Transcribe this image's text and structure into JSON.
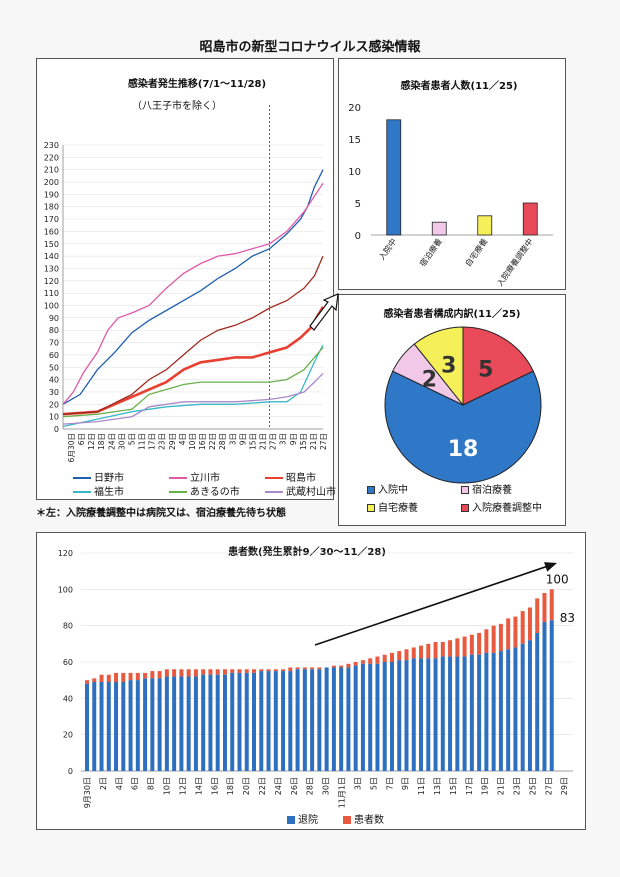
{
  "page_title": "昭島市の新型コロナウイルス感染情報",
  "note": "＊左：入院療養調整中は病院又は、宿泊療養先待ち状態",
  "colors": {
    "hino": "#1f5fb0",
    "tachikawa": "#e05aa8",
    "akishima": "#e84030",
    "fussa": "#3ab8c8",
    "akiruno": "#6ab04a",
    "musashimurayama": "#a88ac8",
    "hospital": "#2f78c8",
    "hotel": "#f2c8e8",
    "home": "#f5f05a",
    "adjusting": "#e84a5a",
    "discharged": "#2f6fc0",
    "patients": "#e85a40"
  },
  "chart_data": [
    {
      "type": "line",
      "title": "感染者発生推移(7/1〜11/28)",
      "subtitle": "（八王子市を除く）",
      "ylim": [
        0,
        230
      ],
      "yticks": [
        "0",
        "10",
        "20",
        "30",
        "40",
        "50",
        "60",
        "70",
        "80",
        "90",
        "100",
        "110",
        "120",
        "130",
        "140",
        "150",
        "160",
        "170",
        "180",
        "190",
        "200",
        "210",
        "220",
        "230"
      ],
      "xticks": [
        "6月30日",
        "6日",
        "12日",
        "18日",
        "24日",
        "30日",
        "5日",
        "11日",
        "17日",
        "23日",
        "29日",
        "4日",
        "10日",
        "16日",
        "22日",
        "28日",
        "3日",
        "9日",
        "15日",
        "21日",
        "27日",
        "3日",
        "9日",
        "15日",
        "21日",
        "27日"
      ],
      "x_range_days": 151,
      "marker_day": 120,
      "series": [
        {
          "name": "日野市",
          "key": "hino",
          "points": [
            [
              0,
              20
            ],
            [
              10,
              28
            ],
            [
              20,
              48
            ],
            [
              30,
              62
            ],
            [
              40,
              78
            ],
            [
              50,
              88
            ],
            [
              60,
              96
            ],
            [
              70,
              104
            ],
            [
              80,
              112
            ],
            [
              90,
              122
            ],
            [
              100,
              130
            ],
            [
              110,
              140
            ],
            [
              120,
              146
            ],
            [
              130,
              158
            ],
            [
              138,
              170
            ],
            [
              142,
              180
            ],
            [
              146,
              196
            ],
            [
              151,
              210
            ]
          ]
        },
        {
          "name": "立川市",
          "key": "tachikawa",
          "points": [
            [
              0,
              20
            ],
            [
              6,
              30
            ],
            [
              12,
              46
            ],
            [
              20,
              62
            ],
            [
              26,
              80
            ],
            [
              32,
              90
            ],
            [
              40,
              94
            ],
            [
              50,
              100
            ],
            [
              60,
              114
            ],
            [
              70,
              126
            ],
            [
              80,
              134
            ],
            [
              90,
              140
            ],
            [
              100,
              142
            ],
            [
              110,
              146
            ],
            [
              120,
              150
            ],
            [
              130,
              160
            ],
            [
              140,
              176
            ],
            [
              151,
              199
            ]
          ]
        },
        {
          "name": "昭島市",
          "key": "akishima",
          "points": [
            [
              0,
              12
            ],
            [
              20,
              14
            ],
            [
              40,
              26
            ],
            [
              50,
              32
            ],
            [
              60,
              38
            ],
            [
              70,
              48
            ],
            [
              80,
              54
            ],
            [
              90,
              56
            ],
            [
              100,
              58
            ],
            [
              110,
              58
            ],
            [
              120,
              62
            ],
            [
              130,
              66
            ],
            [
              138,
              74
            ],
            [
              144,
              82
            ],
            [
              148,
              92
            ],
            [
              151,
              99
            ]
          ]
        },
        {
          "name": "福生市",
          "key": "fussa",
          "points": [
            [
              0,
              2
            ],
            [
              20,
              8
            ],
            [
              40,
              14
            ],
            [
              60,
              18
            ],
            [
              80,
              20
            ],
            [
              100,
              20
            ],
            [
              120,
              22
            ],
            [
              130,
              22
            ],
            [
              138,
              30
            ],
            [
              144,
              48
            ],
            [
              148,
              60
            ],
            [
              151,
              68
            ]
          ]
        },
        {
          "name": "あきるの市",
          "key": "akiruno",
          "points": [
            [
              0,
              10
            ],
            [
              20,
              12
            ],
            [
              40,
              16
            ],
            [
              50,
              28
            ],
            [
              60,
              32
            ],
            [
              70,
              36
            ],
            [
              80,
              38
            ],
            [
              90,
              38
            ],
            [
              100,
              38
            ],
            [
              120,
              38
            ],
            [
              130,
              40
            ],
            [
              140,
              48
            ],
            [
              146,
              58
            ],
            [
              151,
              66
            ]
          ]
        },
        {
          "name": "武蔵村山市",
          "key": "musashimurayama",
          "points": [
            [
              0,
              4
            ],
            [
              20,
              6
            ],
            [
              40,
              10
            ],
            [
              50,
              18
            ],
            [
              60,
              20
            ],
            [
              70,
              22
            ],
            [
              80,
              22
            ],
            [
              100,
              22
            ],
            [
              120,
              24
            ],
            [
              130,
              26
            ],
            [
              140,
              30
            ],
            [
              146,
              38
            ],
            [
              151,
              45
            ]
          ]
        },
        {
          "name": "",
          "key": "akishima2",
          "points": [
            [
              0,
              12
            ],
            [
              20,
              14
            ],
            [
              40,
              28
            ],
            [
              50,
              40
            ],
            [
              60,
              48
            ],
            [
              70,
              60
            ],
            [
              80,
              72
            ],
            [
              90,
              80
            ],
            [
              100,
              84
            ],
            [
              110,
              90
            ],
            [
              120,
              98
            ],
            [
              130,
              104
            ],
            [
              140,
              114
            ],
            [
              146,
              124
            ],
            [
              151,
              140
            ]
          ]
        }
      ]
    },
    {
      "type": "bar",
      "title": "感染者患者人数(11／25)",
      "ylim": [
        0,
        20
      ],
      "yticks": [
        "0",
        "5",
        "10",
        "15",
        "20"
      ],
      "categories": [
        "入院中",
        "宿泊療養",
        "自宅療養",
        "入院療養調整中"
      ],
      "values": [
        18,
        2,
        3,
        5
      ],
      "color_keys": [
        "hospital",
        "hotel",
        "home",
        "adjusting"
      ]
    },
    {
      "type": "pie",
      "title": "感染者患者構成内訳(11／25)",
      "categories": [
        "入院中",
        "宿泊療養",
        "自宅療養",
        "入院療養調整中"
      ],
      "values": [
        18,
        2,
        3,
        5
      ],
      "labels": [
        "18",
        "2",
        "3",
        "5"
      ],
      "color_keys": [
        "hospital",
        "hotel",
        "home",
        "adjusting"
      ]
    },
    {
      "type": "bar",
      "title": "患者数(発生累計9／30〜11／28)",
      "ylim": [
        0,
        120
      ],
      "yticks": [
        "0",
        "20",
        "40",
        "60",
        "80",
        "100",
        "120"
      ],
      "xticks": [
        "9月30日",
        "2日",
        "4日",
        "6日",
        "8日",
        "10日",
        "12日",
        "14日",
        "16日",
        "18日",
        "20日",
        "22日",
        "24日",
        "26日",
        "28日",
        "30日",
        "11月1日",
        "3日",
        "5日",
        "7日",
        "9日",
        "11日",
        "13日",
        "15日",
        "17日",
        "19日",
        "21日",
        "23日",
        "25日",
        "27日",
        "29日"
      ],
      "series": [
        {
          "name": "退院",
          "key": "discharged",
          "values": [
            48,
            49,
            49,
            49,
            49,
            49,
            50,
            50,
            51,
            51,
            51,
            52,
            52,
            52,
            52,
            52,
            53,
            53,
            53,
            53,
            54,
            54,
            54,
            54,
            55,
            55,
            55,
            55,
            55,
            56,
            56,
            56,
            56,
            57,
            57,
            57,
            57,
            58,
            59,
            59,
            59,
            60,
            60,
            61,
            61,
            62,
            62,
            62,
            62,
            63,
            63,
            63,
            63,
            64,
            64,
            65,
            65,
            66,
            67,
            68,
            70,
            72,
            76,
            82,
            83
          ]
        },
        {
          "name": "患者数",
          "key": "patients",
          "values": [
            50,
            51,
            53,
            53,
            54,
            54,
            54,
            54,
            54,
            55,
            55,
            56,
            56,
            56,
            56,
            56,
            56,
            56,
            56,
            56,
            56,
            56,
            56,
            56,
            56,
            56,
            56,
            56,
            57,
            57,
            57,
            57,
            57,
            57,
            58,
            58,
            59,
            60,
            61,
            62,
            63,
            64,
            65,
            66,
            67,
            68,
            69,
            70,
            71,
            71,
            72,
            73,
            74,
            75,
            76,
            78,
            80,
            81,
            84,
            85,
            88,
            90,
            95,
            98,
            100
          ]
        }
      ],
      "end_labels": [
        "100",
        "83"
      ]
    }
  ]
}
